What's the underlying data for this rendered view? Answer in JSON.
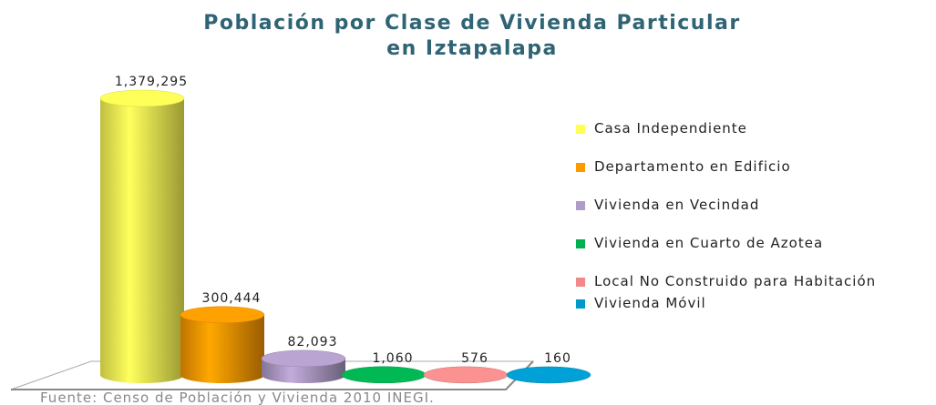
{
  "chart_data": {
    "type": "bar3d",
    "title": [
      "Población por Clase de Vivienda Particular",
      "en Iztapalapa"
    ],
    "categories": [
      "Casa Independiente",
      "Departamento en Edificio",
      "Vivienda en Vecindad",
      "Vivienda en Cuarto de Azotea",
      "Local No Construido para Habitación",
      "Vivienda Móvil"
    ],
    "values": [
      1379295,
      300444,
      82093,
      1060,
      576,
      160
    ],
    "value_labels": [
      "1,379,295",
      "300,444",
      "82,093",
      "1,060",
      "576",
      "160"
    ],
    "colors": [
      "#ffff55",
      "#ff9900",
      "#b09cc8",
      "#00b050",
      "#f08a8a",
      "#0099cc"
    ],
    "source": "Fuente: Censo de Población y Vivienda 2010 INEGI."
  }
}
